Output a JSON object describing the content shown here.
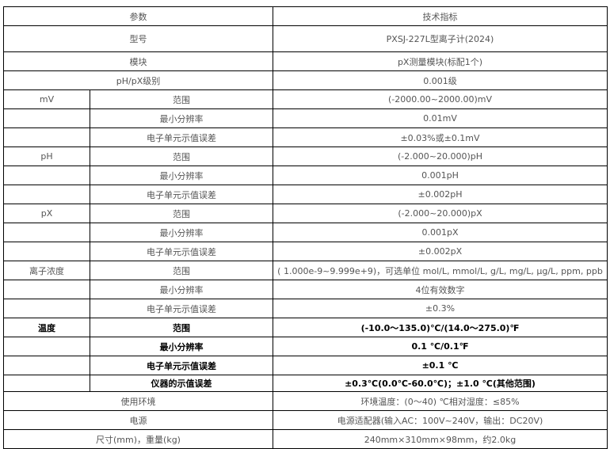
{
  "header": {
    "param": "参数",
    "spec": "技术指标"
  },
  "top_rows": [
    {
      "param": "型号",
      "spec": "PXSJ-227L型离子计(2024)"
    },
    {
      "param": "模块",
      "spec": "pX测量模块(标配1个)"
    },
    {
      "param": "pH/pX级别",
      "spec": "0.001级"
    }
  ],
  "groups": [
    {
      "name": "mV",
      "rows": [
        {
          "param": "范围",
          "spec": "(-2000.00~2000.00)mV"
        },
        {
          "param": "最小分辨率",
          "spec": "0.01mV"
        },
        {
          "param": "电子单元示值误差",
          "spec": "±0.03%或±0.1mV"
        }
      ]
    },
    {
      "name": "pH",
      "rows": [
        {
          "param": "范围",
          "spec": "(-2.000~20.000)pH"
        },
        {
          "param": "最小分辨率",
          "spec": "0.001pH"
        },
        {
          "param": "电子单元示值误差",
          "spec": "±0.002pH"
        }
      ]
    },
    {
      "name": "pX",
      "rows": [
        {
          "param": "范围",
          "spec": "(-2.000~20.000)pX"
        },
        {
          "param": "最小分辨率",
          "spec": "0.001pX"
        },
        {
          "param": "电子单元示值误差",
          "spec": "±0.002pX"
        }
      ]
    },
    {
      "name": "离子浓度",
      "rows": [
        {
          "param": "范围",
          "spec": "( 1.000e-9~9.999e+9)，可选单位 mol/L, mmol/L, g/L, mg/L, μg/L, ppm, ppb"
        },
        {
          "param": "最小分辨率",
          "spec": "4位有效数字"
        },
        {
          "param": "电子单元示值误差",
          "spec": "±0.3%"
        }
      ]
    },
    {
      "name": "温度",
      "rows": [
        {
          "param": "范围",
          "spec": "(-10.0～135.0)℃/(14.0～275.0)℉"
        },
        {
          "param": "最小分辨率",
          "spec": "0.1 ℃/0.1℉"
        },
        {
          "param": "电子单元示值误差",
          "spec": "±0.1 ℃"
        },
        {
          "param": "仪器的示值误差",
          "spec": "±0.3℃(0.0℃-60.0℃)；±1.0 ℃(其他范围)"
        }
      ]
    }
  ],
  "bottom_rows": [
    {
      "param": "使用环境",
      "spec": "环境温度：(0～40) ℃相对湿度：≤85%"
    },
    {
      "param": "电源",
      "spec": "电源适配器(输入AC：100V~240V，输出：DC20V)"
    },
    {
      "param": "尺寸(mm)，重量(kg)",
      "spec": "240mm×310mm×98mm，约2.0kg"
    }
  ]
}
